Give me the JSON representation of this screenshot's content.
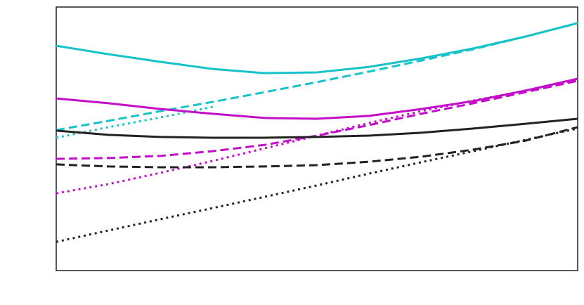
{
  "chart_data": {
    "type": "line",
    "x": [
      0,
      10,
      20,
      30,
      40,
      50,
      60,
      70,
      80,
      90,
      100
    ],
    "xlim": [
      0,
      100
    ],
    "ylim": [
      0,
      100
    ],
    "series": [
      {
        "color": "#17c3c8",
        "dash": "solid",
        "values": [
          85.3,
          82.1,
          79.2,
          76.5,
          74.9,
          75.2,
          77.3,
          80.5,
          84.3,
          88.8,
          93.9
        ]
      },
      {
        "color": "#17c3c8",
        "dash": "dashed",
        "values": [
          53.3,
          56.8,
          60.5,
          64,
          67.7,
          71.5,
          75.5,
          79.7,
          84,
          88.8,
          93.9
        ]
      },
      {
        "color": "#17c3c8",
        "dash": "dotted",
        "values": [
          50.4,
          54.4,
          58.1,
          62.1,
          null,
          null,
          null,
          null,
          null,
          null,
          null
        ]
      },
      {
        "color": "#c40dc8",
        "dash": "solid",
        "values": [
          65.3,
          63.5,
          61.3,
          59.5,
          57.9,
          57.6,
          58.7,
          61.3,
          64.3,
          68.3,
          72.8
        ]
      },
      {
        "color": "#c40dc8",
        "dash": "dashed",
        "values": [
          42.4,
          42.7,
          43.5,
          45.3,
          47.7,
          51.2,
          55.2,
          59.5,
          63.5,
          67.7,
          72
        ]
      },
      {
        "color": "#c40dc8",
        "dash": "dotted",
        "values": [
          29.3,
          32.8,
          37.1,
          41.6,
          46.4,
          51.2,
          56,
          60.5,
          64.5,
          68.3,
          72.3
        ]
      },
      {
        "color": "#222222",
        "dash": "solid",
        "values": [
          53.1,
          51.5,
          50.7,
          50.4,
          50.4,
          50.7,
          51.2,
          52.3,
          53.9,
          55.7,
          57.6
        ]
      },
      {
        "color": "#222222",
        "dash": "dashed",
        "values": [
          40.3,
          39.5,
          39.2,
          39.2,
          39.5,
          40,
          41.3,
          43.2,
          45.9,
          49.3,
          54.4
        ]
      },
      {
        "color": "#222222",
        "dash": "dotted",
        "values": [
          10.9,
          15.2,
          19.5,
          23.7,
          28,
          32.3,
          36.8,
          41.1,
          45.3,
          49.6,
          53.9
        ]
      }
    ]
  }
}
